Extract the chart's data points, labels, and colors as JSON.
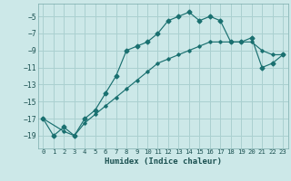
{
  "xlabel": "Humidex (Indice chaleur)",
  "bg_color": "#cce8e8",
  "grid_color": "#aad0d0",
  "line_color": "#1a7070",
  "xlim": [
    -0.5,
    23.5
  ],
  "ylim": [
    -20.5,
    -3.5
  ],
  "xticks": [
    0,
    1,
    2,
    3,
    4,
    5,
    6,
    7,
    8,
    9,
    10,
    11,
    12,
    13,
    14,
    15,
    16,
    17,
    18,
    19,
    20,
    21,
    22,
    23
  ],
  "yticks": [
    -19,
    -17,
    -15,
    -13,
    -11,
    -9,
    -7,
    -5
  ],
  "line1_x": [
    0,
    1,
    2,
    3,
    4,
    5,
    6,
    7,
    8,
    9,
    10,
    11,
    12,
    13,
    14,
    15,
    16,
    17,
    18,
    19,
    20,
    21,
    22,
    23
  ],
  "line1_y": [
    -17,
    -19,
    -18,
    -19,
    -17,
    -16,
    -14,
    -12,
    -9,
    -8.5,
    -8,
    -7,
    -5.5,
    -5,
    -4.5,
    -5.5,
    -5,
    -5.5,
    -8,
    -8,
    -7.5,
    -11,
    -10.5,
    -9.5
  ],
  "line2_x": [
    0,
    2,
    3,
    4,
    5,
    6,
    7,
    8,
    9,
    10,
    11,
    12,
    13,
    14,
    15,
    16,
    17,
    18,
    19,
    20,
    21,
    22,
    23
  ],
  "line2_y": [
    -17,
    -18.5,
    -19,
    -17.5,
    -16.5,
    -15.5,
    -14.5,
    -13.5,
    -12.5,
    -11.5,
    -10.5,
    -10,
    -9.5,
    -9,
    -8.5,
    -8,
    -8,
    -8,
    -8,
    -8,
    -9,
    -9.5,
    -9.5
  ]
}
